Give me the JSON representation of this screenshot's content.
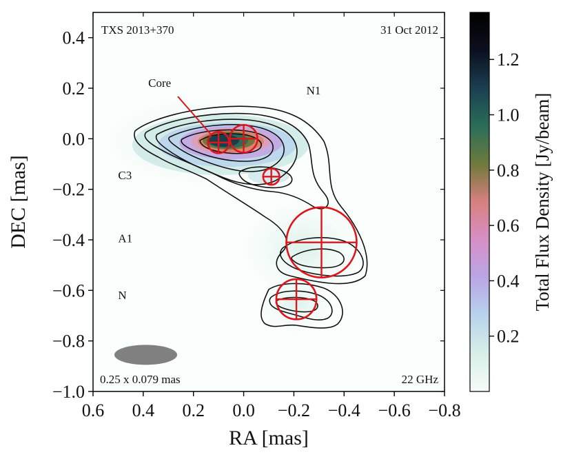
{
  "chart_data": {
    "type": "contour",
    "source_name": "TXS 2013+370",
    "date": "31 Oct 2012",
    "frequency": "22 GHz",
    "beam_label": "0.25 x 0.079 mas",
    "xlabel": "RA [mas]",
    "ylabel": "DEC [mas]",
    "xlim": [
      0.6,
      -0.8
    ],
    "ylim": [
      -1.0,
      0.5
    ],
    "xticks": [
      0.6,
      0.4,
      0.2,
      0.0,
      -0.2,
      -0.4,
      -0.6,
      -0.8
    ],
    "xtick_labels": [
      "0.6",
      "0.4",
      "0.2",
      "0.0",
      "−0.2",
      "−0.4",
      "−0.6",
      "−0.8"
    ],
    "yticks": [
      0.4,
      0.2,
      0.0,
      -0.2,
      -0.4,
      -0.6,
      -0.8,
      -1.0
    ],
    "ytick_labels": [
      "0.4",
      "0.2",
      "0.0",
      "−0.2",
      "−0.4",
      "−0.6",
      "−0.8",
      "−1.0"
    ],
    "colorbar": {
      "label": "Total Flux Density [Jy/beam]",
      "range": [
        0.0,
        1.37
      ],
      "ticks": [
        0.2,
        0.4,
        0.6,
        0.8,
        1.0,
        1.2
      ],
      "tick_labels": [
        "0.2",
        "0.4",
        "0.6",
        "0.8",
        "1.0",
        "1.2"
      ],
      "colormap": [
        "#f7fdf9",
        "#d8efe8",
        "#b8d3ec",
        "#b9a6e6",
        "#d68fc7",
        "#d8807f",
        "#6f7a3c",
        "#2a6e58",
        "#1b3f52",
        "#0c0f1e",
        "#000000"
      ]
    },
    "components": [
      {
        "name": "Core",
        "ra": 0.1,
        "dec": -0.015,
        "fwhm": 0.085
      },
      {
        "name": "N1",
        "ra": 0.0,
        "dec": 0.0,
        "fwhm": 0.11
      },
      {
        "name": "C3",
        "ra": -0.11,
        "dec": -0.15,
        "fwhm": 0.065
      },
      {
        "name": "A1",
        "ra": -0.31,
        "dec": -0.41,
        "fwhm": 0.28
      },
      {
        "name": "N",
        "ra": -0.21,
        "dec": -0.635,
        "fwhm": 0.16
      }
    ],
    "component_labels": [
      {
        "text": "Core",
        "ra": 0.38,
        "dec": 0.205
      },
      {
        "text": "N1",
        "ra": -0.25,
        "dec": 0.175
      },
      {
        "text": "C3",
        "ra": 0.5,
        "dec": -0.16
      },
      {
        "text": "A1",
        "ra": 0.5,
        "dec": -0.41
      },
      {
        "text": "N",
        "ra": 0.5,
        "dec": -0.635
      }
    ],
    "beam": {
      "major_mas": 0.25,
      "minor_mas": 0.079,
      "pa_deg": 90,
      "ra": 0.39,
      "dec": -0.855
    }
  }
}
